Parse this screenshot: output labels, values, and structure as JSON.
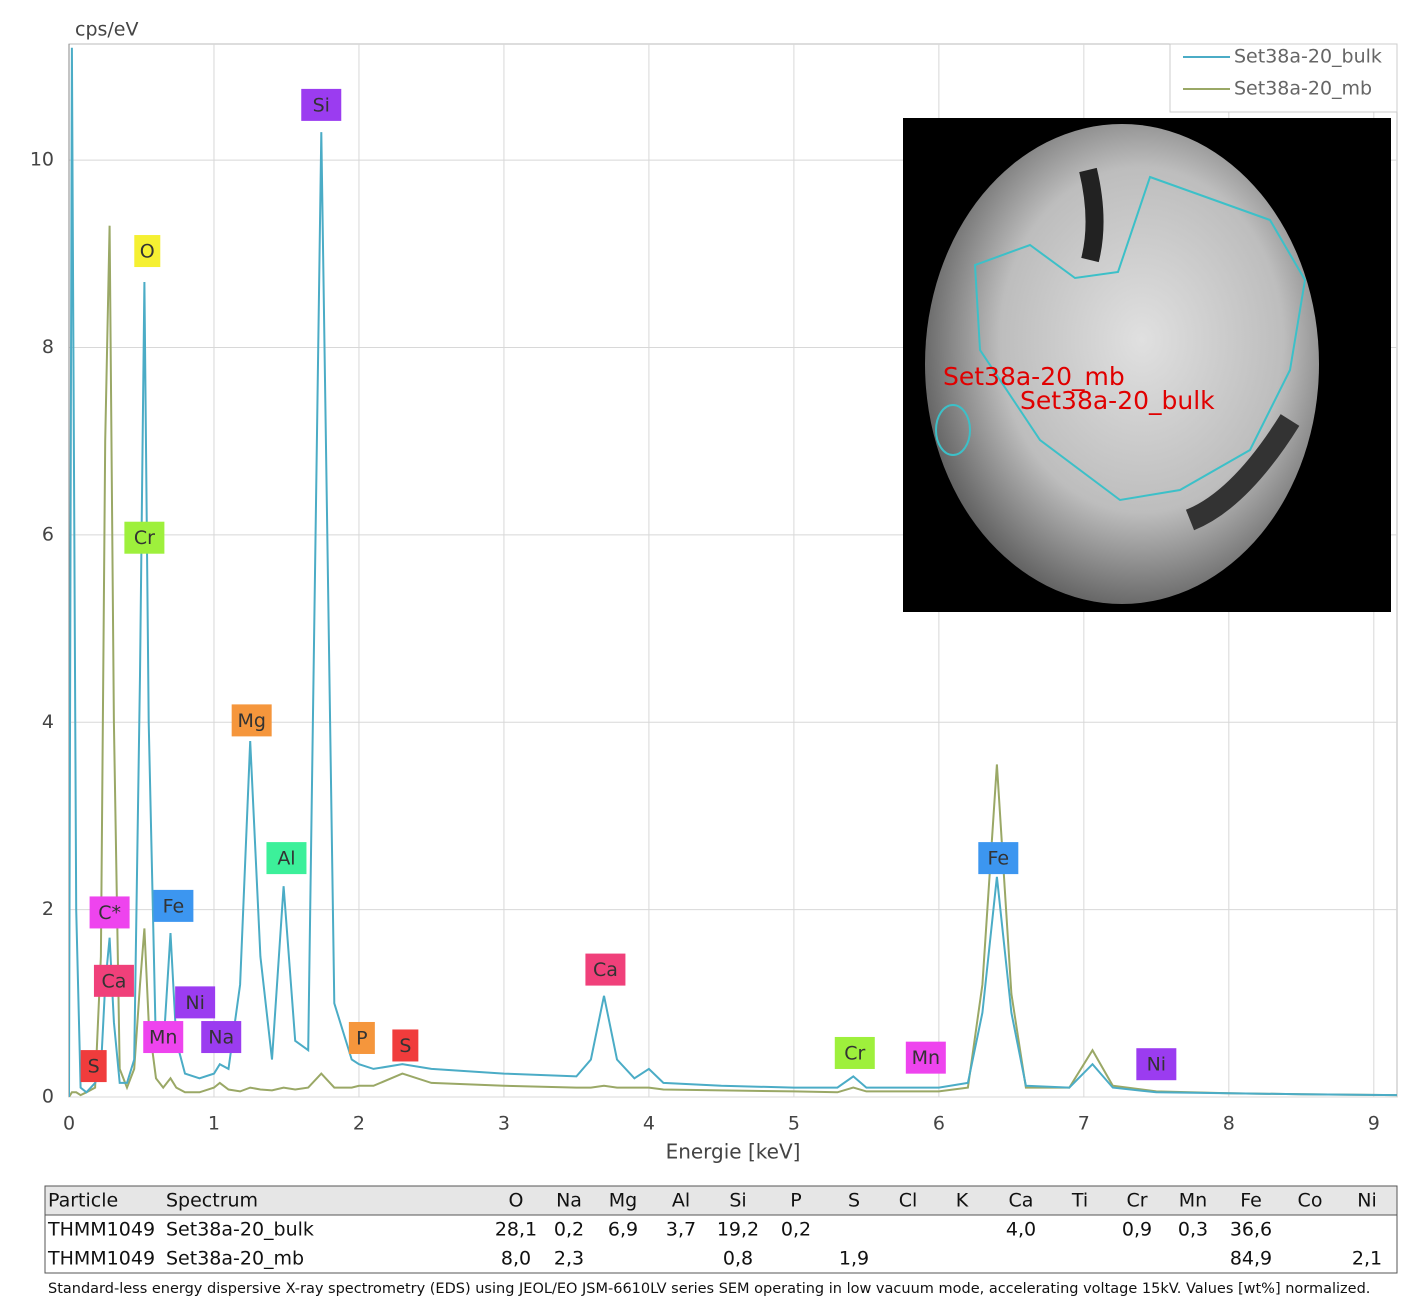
{
  "chart_data": {
    "type": "line",
    "y_label": "cps/eV",
    "x_label": "Energie [keV]",
    "xlim": [
      0,
      9.16
    ],
    "ylim": [
      0,
      11.24
    ],
    "xticks": [
      0,
      1,
      2,
      3,
      4,
      5,
      6,
      7,
      8,
      9
    ],
    "yticks": [
      0,
      2,
      4,
      6,
      8,
      10
    ],
    "grid": true,
    "legend": "top-right",
    "x": [
      0.0,
      0.02,
      0.05,
      0.08,
      0.12,
      0.18,
      0.22,
      0.25,
      0.28,
      0.31,
      0.35,
      0.4,
      0.45,
      0.49,
      0.52,
      0.55,
      0.6,
      0.65,
      0.7,
      0.74,
      0.8,
      0.9,
      1.0,
      1.04,
      1.1,
      1.18,
      1.25,
      1.32,
      1.4,
      1.48,
      1.56,
      1.65,
      1.74,
      1.83,
      1.95,
      2.0,
      2.1,
      2.3,
      2.5,
      3.0,
      3.5,
      3.6,
      3.69,
      3.78,
      3.9,
      4.0,
      4.1,
      4.5,
      5.0,
      5.3,
      5.41,
      5.5,
      6.0,
      6.2,
      6.3,
      6.4,
      6.5,
      6.6,
      6.9,
      7.06,
      7.2,
      7.5,
      8.0,
      8.5,
      9.16
    ],
    "series": [
      {
        "name": "Set38a-20_bulk",
        "color": "#4bacc6",
        "values": [
          0,
          11.2,
          2,
          0.1,
          0.05,
          0.15,
          0.3,
          1.2,
          1.7,
          0.8,
          0.15,
          0.15,
          0.4,
          4.5,
          8.7,
          4,
          0.5,
          0.5,
          1.75,
          0.6,
          0.25,
          0.2,
          0.25,
          0.35,
          0.3,
          1.2,
          3.8,
          1.5,
          0.4,
          2.25,
          0.6,
          0.5,
          10.3,
          1.0,
          0.4,
          0.35,
          0.3,
          0.35,
          0.3,
          0.25,
          0.22,
          0.4,
          1.08,
          0.4,
          0.2,
          0.3,
          0.15,
          0.12,
          0.1,
          0.1,
          0.22,
          0.1,
          0.1,
          0.15,
          0.9,
          2.35,
          0.9,
          0.12,
          0.1,
          0.35,
          0.1,
          0.05,
          0.04,
          0.03,
          0.02
        ]
      },
      {
        "name": "Set38a-20_mb",
        "color": "#9aa866",
        "values": [
          0,
          0.05,
          0.05,
          0.02,
          0.05,
          0.1,
          1.5,
          7,
          9.3,
          4,
          0.3,
          0.1,
          0.3,
          1.2,
          1.8,
          0.8,
          0.2,
          0.1,
          0.2,
          0.1,
          0.05,
          0.05,
          0.1,
          0.15,
          0.08,
          0.06,
          0.1,
          0.08,
          0.07,
          0.1,
          0.08,
          0.1,
          0.25,
          0.1,
          0.1,
          0.12,
          0.12,
          0.25,
          0.15,
          0.12,
          0.1,
          0.1,
          0.12,
          0.1,
          0.1,
          0.1,
          0.08,
          0.07,
          0.06,
          0.05,
          0.1,
          0.06,
          0.06,
          0.1,
          1.2,
          3.55,
          1.1,
          0.1,
          0.1,
          0.5,
          0.12,
          0.06,
          0.04,
          0.03,
          0.02
        ]
      }
    ],
    "annotations": [
      {
        "text": "S",
        "x": 0.17,
        "y": 0.33,
        "color": "#f03c3c"
      },
      {
        "text": "Ca",
        "x": 0.31,
        "y": 1.24,
        "color": "#f0407a"
      },
      {
        "text": "C*",
        "x": 0.28,
        "y": 1.97,
        "color": "#ee44ee"
      },
      {
        "text": "O",
        "x": 0.54,
        "y": 9.03,
        "color": "#f5f032"
      },
      {
        "text": "Cr",
        "x": 0.52,
        "y": 5.97,
        "color": "#9ef03c"
      },
      {
        "text": "Fe",
        "x": 0.72,
        "y": 2.04,
        "color": "#3c96f0"
      },
      {
        "text": "Ni",
        "x": 0.87,
        "y": 1.01,
        "color": "#9b3cf0"
      },
      {
        "text": "Mn",
        "x": 0.65,
        "y": 0.64,
        "color": "#ee44ee"
      },
      {
        "text": "Na",
        "x": 1.05,
        "y": 0.64,
        "color": "#9b3cf0"
      },
      {
        "text": "Mg",
        "x": 1.26,
        "y": 4.02,
        "color": "#f5963c"
      },
      {
        "text": "Al",
        "x": 1.5,
        "y": 2.55,
        "color": "#3cf09a"
      },
      {
        "text": "Si",
        "x": 1.74,
        "y": 10.59,
        "color": "#9b3cf0"
      },
      {
        "text": "P",
        "x": 2.02,
        "y": 0.63,
        "color": "#f5963c"
      },
      {
        "text": "S",
        "x": 2.32,
        "y": 0.55,
        "color": "#f03c3c"
      },
      {
        "text": "Ca",
        "x": 3.7,
        "y": 1.36,
        "color": "#f0407a"
      },
      {
        "text": "Cr",
        "x": 5.42,
        "y": 0.47,
        "color": "#9ef03c"
      },
      {
        "text": "Mn",
        "x": 5.91,
        "y": 0.42,
        "color": "#ee44ee"
      },
      {
        "text": "Fe",
        "x": 6.41,
        "y": 2.55,
        "color": "#3c96f0"
      },
      {
        "text": "Ni",
        "x": 7.5,
        "y": 0.35,
        "color": "#9b3cf0"
      }
    ]
  },
  "image_labels": [
    "Set38a-20_mb",
    "Set38a-20_bulk"
  ],
  "table": {
    "header": [
      "Particle",
      "Spectrum",
      "O",
      "Na",
      "Mg",
      "Al",
      "Si",
      "P",
      "S",
      "Cl",
      "K",
      "Ca",
      "Ti",
      "Cr",
      "Mn",
      "Fe",
      "Co",
      "Ni"
    ],
    "rows": [
      [
        "THMM1049",
        "Set38a-20_bulk",
        "28,1",
        "0,2",
        "6,9",
        "3,7",
        "19,2",
        "0,2",
        null,
        null,
        null,
        "4,0",
        null,
        "0,9",
        "0,3",
        "36,6",
        null,
        null
      ],
      [
        "THMM1049",
        "Set38a-20_mb",
        "8,0",
        "2,3",
        null,
        null,
        "0,8",
        null,
        "1,9",
        null,
        null,
        null,
        null,
        null,
        null,
        "84,9",
        null,
        "2,1"
      ]
    ]
  },
  "caption": "Standard-less energy dispersive X-ray spectrometry (EDS) using JEOL/EO JSM-6610LV series SEM operating in low vacuum mode, accelerating voltage 15kV. Values [wt%] normalized."
}
